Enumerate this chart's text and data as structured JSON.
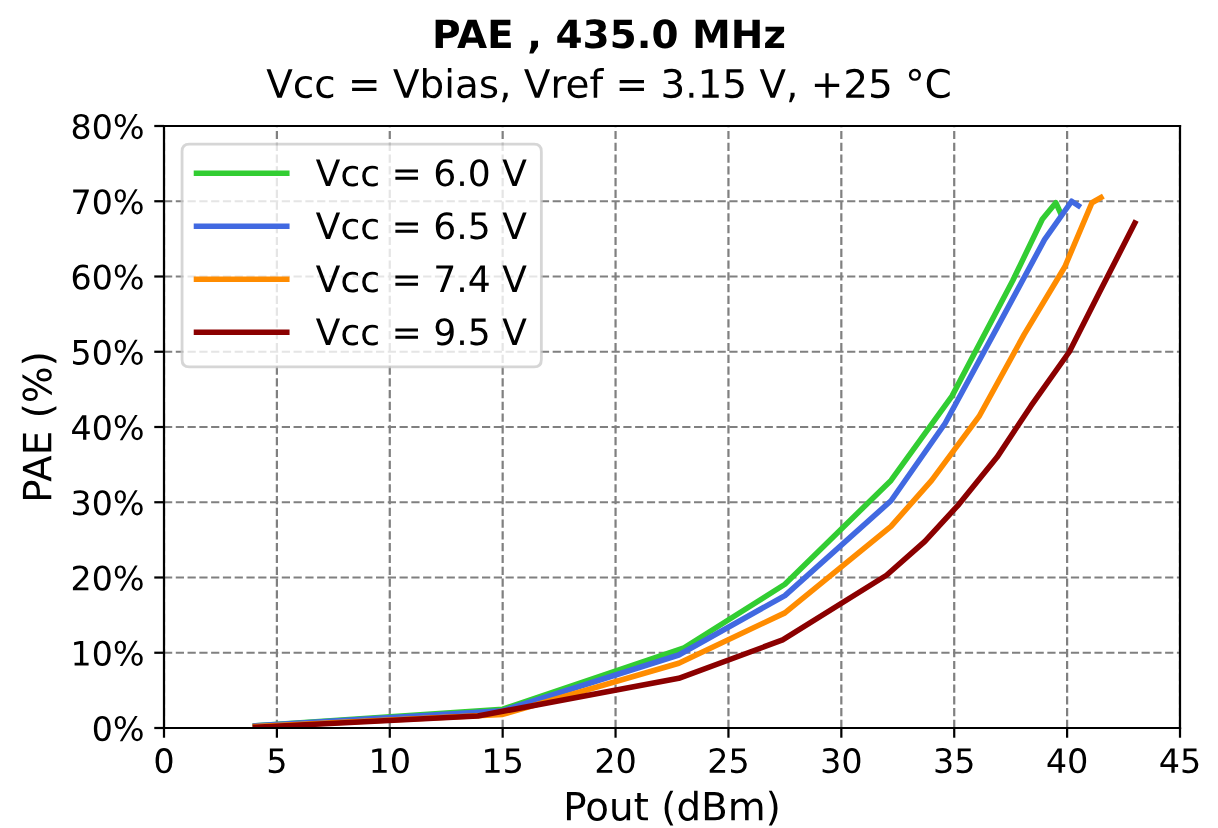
{
  "chart_data": {
    "type": "line",
    "title": "PAE , 435.0 MHz",
    "subtitle": "Vcc = Vbias, Vref = 3.15 V, +25 °C",
    "xlabel": "Pout (dBm)",
    "ylabel": "PAE (%)",
    "xlim": [
      0,
      45
    ],
    "xticks": [
      0,
      5,
      10,
      15,
      20,
      25,
      30,
      35,
      40,
      45
    ],
    "ylim": [
      0,
      80
    ],
    "yticks": [
      {
        "value": 0,
        "label": "0%"
      },
      {
        "value": 10,
        "label": "10%"
      },
      {
        "value": 20,
        "label": "20%"
      },
      {
        "value": 30,
        "label": "30%"
      },
      {
        "value": 40,
        "label": "40%"
      },
      {
        "value": 50,
        "label": "50%"
      },
      {
        "value": 60,
        "label": "60%"
      },
      {
        "value": 70,
        "label": "70%"
      },
      {
        "value": 80,
        "label": "80%"
      }
    ],
    "grid": true,
    "legend": "top left",
    "line_style": "solid",
    "marker": "none",
    "series": [
      {
        "name": "Vcc = 6.0 V",
        "color": "#32cd32",
        "x": [
          4.05,
          15,
          23,
          27.5,
          32.2,
          34.9,
          37.6,
          38.9,
          39.5,
          39.7
        ],
        "values": [
          0.3,
          2.5,
          10.6,
          19.1,
          32.9,
          44.1,
          59.5,
          67.6,
          69.8,
          68.5
        ]
      },
      {
        "name": "Vcc = 6.5 V",
        "color": "#4169e1",
        "x": [
          4.05,
          15,
          22.8,
          27.5,
          32.2,
          34.6,
          36.9,
          39,
          40.2,
          40.5
        ],
        "values": [
          0.3,
          2.3,
          9.7,
          17.6,
          30.2,
          40.5,
          53.2,
          64.9,
          70,
          69.4
        ]
      },
      {
        "name": "Vcc = 7.4 V",
        "color": "#ff8c00",
        "x": [
          4.05,
          15,
          22.8,
          27.5,
          32.2,
          34,
          36.1,
          38.1,
          39.9,
          41.1,
          41.5
        ],
        "values": [
          0.2,
          1.8,
          8.6,
          15.3,
          26.8,
          32.9,
          41.4,
          52.3,
          61.3,
          69.8,
          70.5
        ]
      },
      {
        "name": "Vcc = 9.5 V",
        "color": "#8b0000",
        "x": [
          4.05,
          13.9,
          22.8,
          27.4,
          32,
          33.7,
          35.2,
          36.9,
          38.4,
          40.1,
          41.4,
          43
        ],
        "values": [
          0.1,
          1.6,
          6.6,
          11.7,
          20.3,
          24.8,
          29.7,
          36,
          42.8,
          50,
          57.7,
          67.1
        ]
      }
    ]
  }
}
